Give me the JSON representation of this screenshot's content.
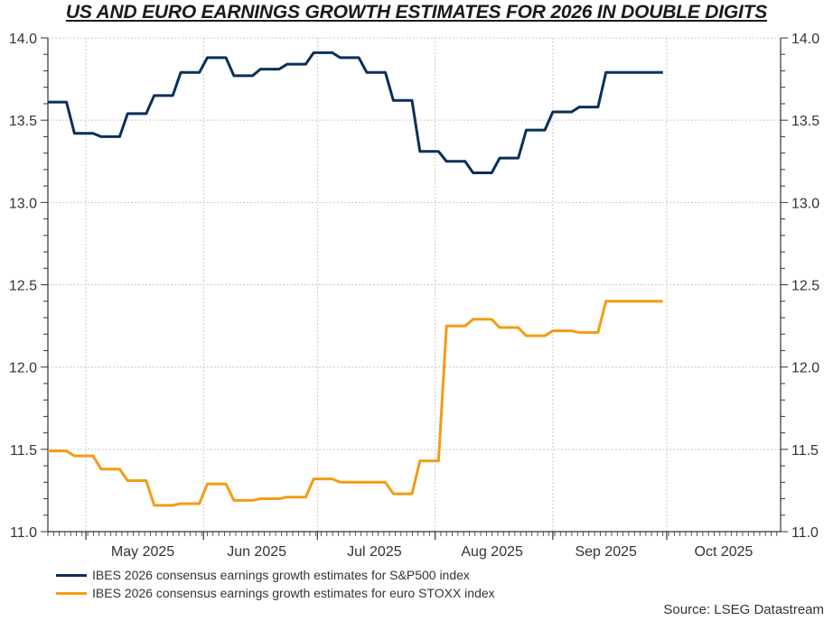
{
  "chart_data": {
    "type": "line",
    "title": "US AND EURO EARNINGS GROWTH ESTIMATES FOR 2026 IN DOUBLE DIGITS",
    "xlabel": "",
    "ylabel": "",
    "ylim": [
      11.0,
      14.0
    ],
    "yticks": [
      "11.0",
      "11.5",
      "12.0",
      "12.5",
      "13.0",
      "13.5",
      "14.0"
    ],
    "ytick_values": [
      11.0,
      11.5,
      12.0,
      12.5,
      13.0,
      13.5,
      14.0
    ],
    "xlim": [
      "2025-04-21",
      "2025-10-31"
    ],
    "xtick_labels": [
      "May 2025",
      "Jun 2025",
      "Jul 2025",
      "Aug 2025",
      "Sep 2025",
      "Oct 2025"
    ],
    "xtick_label_dates": [
      "2025-05-16",
      "2025-06-15",
      "2025-07-16",
      "2025-08-16",
      "2025-09-15",
      "2025-10-16"
    ],
    "month_boundaries": [
      "2025-05-01",
      "2025-06-01",
      "2025-07-01",
      "2025-08-01",
      "2025-09-01",
      "2025-10-01"
    ],
    "grid": true,
    "dual_y_axis": true,
    "legend_position": "bottom-left",
    "x": [
      "2025-04-21",
      "2025-04-28",
      "2025-05-05",
      "2025-05-12",
      "2025-05-19",
      "2025-05-26",
      "2025-06-02",
      "2025-06-09",
      "2025-06-16",
      "2025-06-23",
      "2025-06-30",
      "2025-07-07",
      "2025-07-14",
      "2025-07-21",
      "2025-07-28",
      "2025-08-04",
      "2025-08-11",
      "2025-08-18",
      "2025-08-25",
      "2025-09-01",
      "2025-09-08",
      "2025-09-15",
      "2025-09-22",
      "2025-09-30"
    ],
    "series": [
      {
        "name": "IBES 2026 consensus earnings growth estimates for S&P500 index",
        "color": "#0b2f5a",
        "values": [
          13.61,
          13.42,
          13.4,
          13.54,
          13.65,
          13.79,
          13.88,
          13.77,
          13.81,
          13.84,
          13.91,
          13.88,
          13.79,
          13.62,
          13.31,
          13.25,
          13.18,
          13.27,
          13.44,
          13.55,
          13.58,
          13.79,
          13.79,
          13.79
        ]
      },
      {
        "name": "IBES 2026 consensus earnings growth estimates for euro STOXX index",
        "color": "#f39c12",
        "values": [
          11.49,
          11.46,
          11.38,
          11.31,
          11.16,
          11.17,
          11.29,
          11.19,
          11.2,
          11.21,
          11.32,
          11.3,
          11.3,
          11.23,
          11.43,
          12.25,
          12.29,
          12.24,
          12.19,
          12.22,
          12.21,
          12.4,
          12.4,
          12.4
        ]
      }
    ],
    "source": "Source: LSEG Datastream"
  }
}
